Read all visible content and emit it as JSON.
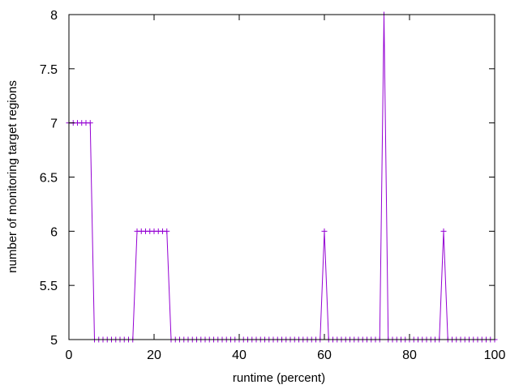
{
  "chart_data": {
    "type": "line",
    "title": "",
    "xlabel": "runtime (percent)",
    "ylabel": "number of monitoring target regions",
    "xlim": [
      0,
      100
    ],
    "ylim": [
      5,
      8
    ],
    "x_ticks": [
      "0",
      "20",
      "40",
      "60",
      "80",
      "100"
    ],
    "y_ticks": [
      "5",
      "5.5",
      "6",
      "6.5",
      "7",
      "7.5",
      "8"
    ],
    "grid": false,
    "legend": "none",
    "marker": "plus",
    "line_color": "#9400d3",
    "x": [
      0,
      1,
      2,
      3,
      4,
      5,
      6,
      7,
      8,
      9,
      10,
      11,
      12,
      13,
      14,
      15,
      16,
      17,
      18,
      19,
      20,
      21,
      22,
      23,
      24,
      25,
      26,
      27,
      28,
      29,
      30,
      31,
      32,
      33,
      34,
      35,
      36,
      37,
      38,
      39,
      40,
      41,
      42,
      43,
      44,
      45,
      46,
      47,
      48,
      49,
      50,
      51,
      52,
      53,
      54,
      55,
      56,
      57,
      58,
      59,
      60,
      61,
      62,
      63,
      64,
      65,
      66,
      67,
      68,
      69,
      70,
      71,
      72,
      73,
      74,
      75,
      76,
      77,
      78,
      79,
      80,
      81,
      82,
      83,
      84,
      85,
      86,
      87,
      88,
      89,
      90,
      91,
      92,
      93,
      94,
      95,
      96,
      97,
      98,
      99,
      100
    ],
    "y": [
      7,
      7,
      7,
      7,
      7,
      7,
      5,
      5,
      5,
      5,
      5,
      5,
      5,
      5,
      5,
      5,
      6,
      6,
      6,
      6,
      6,
      6,
      6,
      6,
      5,
      5,
      5,
      5,
      5,
      5,
      5,
      5,
      5,
      5,
      5,
      5,
      5,
      5,
      5,
      5,
      5,
      5,
      5,
      5,
      5,
      5,
      5,
      5,
      5,
      5,
      5,
      5,
      5,
      5,
      5,
      5,
      5,
      5,
      5,
      5,
      6,
      5,
      5,
      5,
      5,
      5,
      5,
      5,
      5,
      5,
      5,
      5,
      5,
      5,
      8,
      5,
      5,
      5,
      5,
      5,
      5,
      5,
      5,
      5,
      5,
      5,
      5,
      5,
      6,
      5,
      5,
      5,
      5,
      5,
      5,
      5,
      5,
      5,
      5,
      5,
      5
    ]
  }
}
